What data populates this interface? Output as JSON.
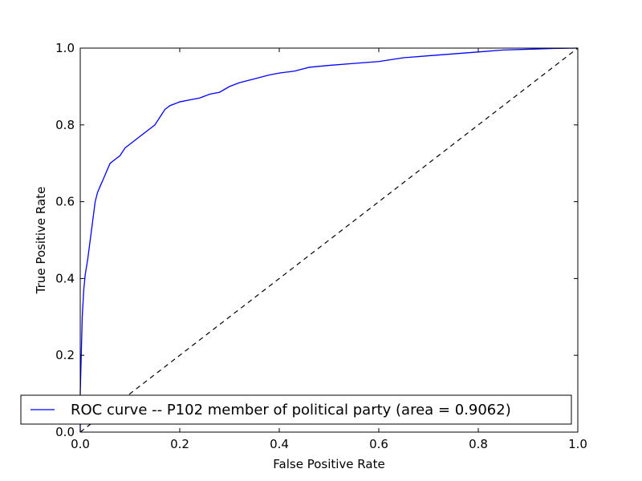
{
  "chart_data": {
    "type": "line",
    "title": "",
    "xlabel": "False Positive Rate",
    "ylabel": "True Positive Rate",
    "xlim": [
      0.0,
      1.0
    ],
    "ylim": [
      0.0,
      1.0
    ],
    "xticks": [
      "0.0",
      "0.2",
      "0.4",
      "0.6",
      "0.8",
      "1.0"
    ],
    "yticks": [
      "0.0",
      "0.2",
      "0.4",
      "0.6",
      "0.8",
      "1.0"
    ],
    "grid": false,
    "legend_placement": "lower-left",
    "series": [
      {
        "name": "ROC curve -- P102 member of political party (area = 0.9062)",
        "color": "#0000ff",
        "style": "solid",
        "x": [
          0.0,
          0.0,
          0.004,
          0.007,
          0.01,
          0.015,
          0.02,
          0.025,
          0.03,
          0.035,
          0.04,
          0.05,
          0.06,
          0.07,
          0.08,
          0.09,
          0.1,
          0.11,
          0.12,
          0.13,
          0.14,
          0.15,
          0.16,
          0.17,
          0.18,
          0.2,
          0.22,
          0.24,
          0.26,
          0.28,
          0.3,
          0.32,
          0.35,
          0.38,
          0.4,
          0.43,
          0.46,
          0.5,
          0.55,
          0.6,
          0.65,
          0.7,
          0.75,
          0.8,
          0.85,
          0.9,
          0.95,
          1.0
        ],
        "y": [
          0.0,
          0.1,
          0.3,
          0.37,
          0.41,
          0.45,
          0.5,
          0.55,
          0.6,
          0.625,
          0.64,
          0.67,
          0.7,
          0.71,
          0.72,
          0.74,
          0.75,
          0.76,
          0.77,
          0.78,
          0.79,
          0.8,
          0.82,
          0.84,
          0.85,
          0.86,
          0.865,
          0.87,
          0.88,
          0.885,
          0.9,
          0.91,
          0.92,
          0.93,
          0.935,
          0.94,
          0.95,
          0.955,
          0.96,
          0.965,
          0.975,
          0.98,
          0.985,
          0.99,
          0.995,
          0.997,
          0.999,
          1.0
        ]
      },
      {
        "name": "",
        "color": "#000000",
        "style": "dashed",
        "x": [
          0.0,
          1.0
        ],
        "y": [
          0.0,
          1.0
        ]
      }
    ]
  }
}
